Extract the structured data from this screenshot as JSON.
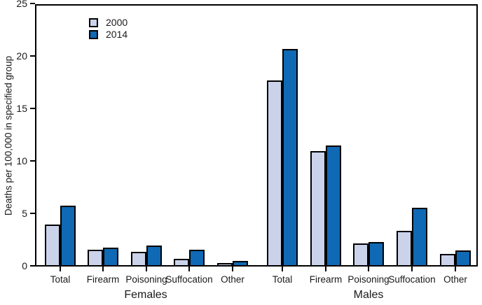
{
  "chart_data": {
    "type": "bar",
    "title": "",
    "ylabel": "Deaths per 100,000 in specified group",
    "ylim": [
      0,
      25
    ],
    "yticks": [
      0,
      5,
      10,
      15,
      20,
      25
    ],
    "grid": false,
    "legend_position": "top-left",
    "bar_colors": {
      "2000": "#cbd3eb",
      "2014": "#0f69b4"
    },
    "bar_border_color": "#000000",
    "axis_color": "#000000",
    "groups": [
      {
        "label": "Females",
        "categories": [
          "Total",
          "Firearm",
          "Poisoning",
          "Suffocation",
          "Other"
        ],
        "series": [
          {
            "name": "2000",
            "values": [
              4.0,
              1.6,
              1.4,
              0.7,
              0.3
            ]
          },
          {
            "name": "2014",
            "values": [
              5.8,
              1.8,
              2.0,
              1.6,
              0.5
            ]
          }
        ]
      },
      {
        "label": "Males",
        "categories": [
          "Total",
          "Firearm",
          "Poisoning",
          "Suffocation",
          "Other"
        ],
        "series": [
          {
            "name": "2000",
            "values": [
              17.7,
              11.0,
              2.2,
              3.4,
              1.2
            ]
          },
          {
            "name": "2014",
            "values": [
              20.7,
              11.5,
              2.3,
              5.6,
              1.5
            ]
          }
        ]
      }
    ]
  }
}
